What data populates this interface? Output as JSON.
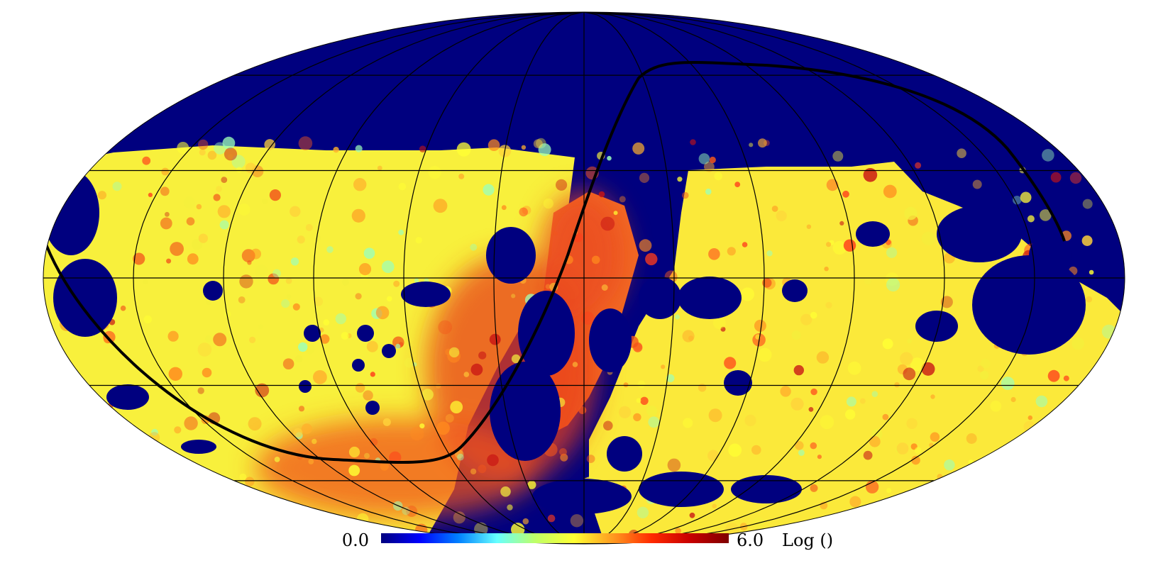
{
  "map": {
    "projection": "mollweide",
    "background_color": "#00007f",
    "graticule_color": "#000000",
    "ecliptic_color": "#000000",
    "blob_colors": [
      "#ffff33",
      "#f4ef3c",
      "#ffd23a",
      "#ffb02c",
      "#ff8a1e",
      "#f2561b",
      "#ff3b1a",
      "#c81414",
      "#9cffb8"
    ]
  },
  "colorbar": {
    "min_label": "0.0",
    "max_label": "6.0",
    "unit_label": "Log ()",
    "stops": [
      "#00007f",
      "#0000ff",
      "#0080ff",
      "#66ffff",
      "#bfff66",
      "#ffff33",
      "#ff9a20",
      "#ff2a00",
      "#c80000",
      "#7f0000"
    ]
  }
}
